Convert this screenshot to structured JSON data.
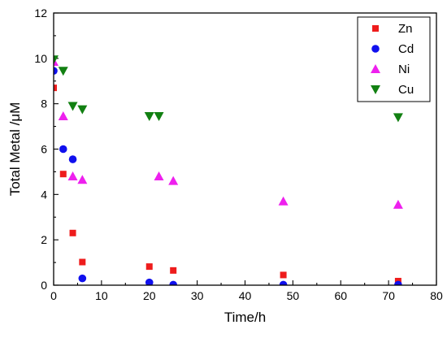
{
  "chart_data": {
    "type": "scatter",
    "title": "",
    "xlabel": "Time/h",
    "ylabel": "Total Metal /μM",
    "xlim": [
      0,
      80
    ],
    "ylim": [
      0,
      12
    ],
    "xticks": [
      0,
      10,
      20,
      30,
      40,
      50,
      60,
      70,
      80
    ],
    "yticks": [
      0,
      2,
      4,
      6,
      8,
      10,
      12
    ],
    "grid": false,
    "legend_position": "top-right",
    "series": [
      {
        "name": "Zn",
        "marker": "square",
        "color": "#ee1c1c",
        "x": [
          0,
          2,
          4,
          6,
          20,
          25,
          48,
          72
        ],
        "y": [
          8.7,
          4.9,
          2.3,
          1.02,
          0.82,
          0.65,
          0.45,
          0.18
        ]
      },
      {
        "name": "Cd",
        "marker": "circle",
        "color": "#1010ee",
        "x": [
          0,
          2,
          4,
          6,
          20,
          25,
          48,
          72
        ],
        "y": [
          9.45,
          6.0,
          5.55,
          0.3,
          0.12,
          0.02,
          0.02,
          0.02
        ]
      },
      {
        "name": "Ni",
        "marker": "triangle-up",
        "color": "#ee20ee",
        "x": [
          0,
          2,
          4,
          6,
          22,
          25,
          48,
          72
        ],
        "y": [
          9.85,
          7.45,
          4.8,
          4.65,
          4.8,
          4.6,
          3.7,
          3.55
        ]
      },
      {
        "name": "Cu",
        "marker": "triangle-down",
        "color": "#128012",
        "x": [
          0,
          2,
          4,
          6,
          20,
          22,
          72
        ],
        "y": [
          9.95,
          9.45,
          7.9,
          7.75,
          7.45,
          7.45,
          7.4
        ]
      }
    ]
  }
}
